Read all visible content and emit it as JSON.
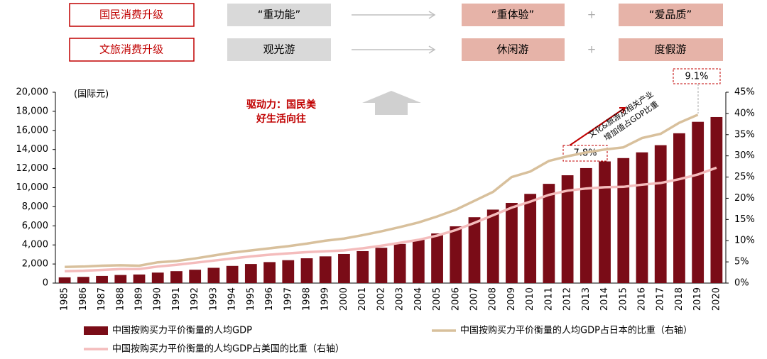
{
  "header": {
    "rows": [
      {
        "label": "国民消费升级",
        "from": "“重功能”",
        "to": [
          "“重体验”",
          "“爱品质”"
        ],
        "plus": "+"
      },
      {
        "label": "文旅消费升级",
        "from": "观光游",
        "to": [
          "休闲游",
          "度假游"
        ],
        "plus": "+"
      }
    ]
  },
  "chart_data": {
    "type": "bar",
    "categories": [
      "1985",
      "1986",
      "1987",
      "1988",
      "1989",
      "1990",
      "1991",
      "1992",
      "1993",
      "1994",
      "1995",
      "1996",
      "1997",
      "1998",
      "1999",
      "2000",
      "2001",
      "2002",
      "2003",
      "2004",
      "2005",
      "2006",
      "2007",
      "2008",
      "2009",
      "2010",
      "2011",
      "2012",
      "2013",
      "2014",
      "2015",
      "2016",
      "2017",
      "2018",
      "2019",
      "2020"
    ],
    "series": [
      {
        "name": "中国按购买力平价衡量的人均GDP",
        "type": "bar",
        "color": "#7a0c17",
        "values": [
          600,
          650,
          750,
          850,
          900,
          1100,
          1250,
          1400,
          1600,
          1800,
          2000,
          2200,
          2400,
          2600,
          2800,
          3050,
          3350,
          3700,
          4100,
          4550,
          5200,
          5950,
          6900,
          7700,
          8400,
          9350,
          10400,
          11300,
          12050,
          12750,
          13100,
          13700,
          14450,
          15700,
          16900,
          17400
        ]
      },
      {
        "name": "中国按购买力平价衡量的人均GDP占日本的比重（右轴）",
        "type": "line",
        "axis": "y2",
        "color": "#d8c09c",
        "values": [
          3.8,
          3.9,
          4.1,
          4.2,
          4.1,
          4.9,
          5.2,
          5.8,
          6.5,
          7.2,
          7.7,
          8.2,
          8.7,
          9.3,
          10.0,
          10.5,
          11.3,
          12.2,
          13.2,
          14.3,
          15.7,
          17.3,
          19.4,
          21.5,
          25.0,
          26.3,
          28.8,
          29.9,
          30.8,
          31.5,
          32.0,
          34.2,
          35.2,
          37.8,
          39.7,
          null
        ]
      },
      {
        "name": "中国按购买力平价衡量的人均GDP占美国的比重（右轴）",
        "type": "line",
        "axis": "y2",
        "color": "#f4bcbc",
        "values": [
          2.8,
          2.9,
          3.1,
          3.3,
          3.3,
          3.9,
          4.3,
          4.8,
          5.3,
          5.8,
          6.3,
          6.7,
          7.0,
          7.3,
          7.5,
          7.7,
          8.2,
          8.8,
          9.5,
          10.2,
          11.2,
          12.5,
          14.2,
          16.0,
          17.8,
          19.2,
          20.8,
          21.8,
          22.3,
          22.6,
          22.7,
          23.2,
          23.6,
          24.5,
          25.6,
          27.2
        ]
      }
    ],
    "ylim": [
      0,
      20000
    ],
    "yticks": [
      0,
      {
        "value": 2000,
        "label": "2,000"
      },
      {
        "value": 4000,
        "label": "4,000"
      },
      {
        "value": 6000,
        "label": "6,000"
      },
      {
        "value": 8000,
        "label": "8,000"
      },
      {
        "value": 10000,
        "label": "10,000"
      },
      {
        "value": 12000,
        "label": "12,000"
      },
      {
        "value": 14000,
        "label": "14,000"
      },
      {
        "value": 16000,
        "label": "16,000"
      },
      {
        "value": 18000,
        "label": "18,000"
      },
      {
        "value": 20000,
        "label": "20,000"
      }
    ],
    "y2lim": [
      0,
      45
    ],
    "y2ticks": [
      {
        "value": 0,
        "label": "0%"
      },
      {
        "value": 5,
        "label": "5%"
      },
      {
        "value": 10,
        "label": "10%"
      },
      {
        "value": 15,
        "label": "15%"
      },
      {
        "value": 20,
        "label": "20%"
      },
      {
        "value": 25,
        "label": "25%"
      },
      {
        "value": 30,
        "label": "30%"
      },
      {
        "value": 35,
        "label": "35%"
      },
      {
        "value": 40,
        "label": "40%"
      },
      {
        "value": 45,
        "label": "45%"
      }
    ],
    "annotations": {
      "unit": "(国际元)",
      "driver": [
        "驱动力：国民美",
        "好生活向往"
      ],
      "arrow_text": [
        "文化&旅游及相关产业",
        "增加值占GDP比重"
      ],
      "callouts": [
        "7.8%",
        "9.1%"
      ]
    }
  }
}
